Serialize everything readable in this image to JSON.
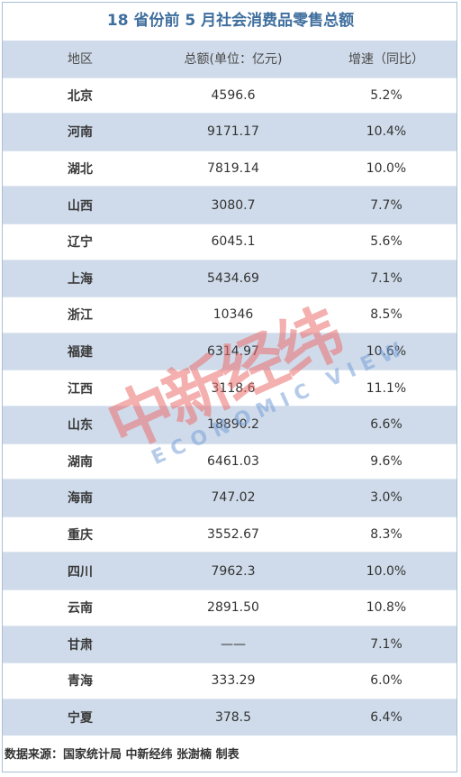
{
  "title": "18 省份前 5 月社会消费品零售总额",
  "headers": [
    "地区",
    "总额(单位：亿元)",
    "增速（同比）"
  ],
  "rows": [
    {
      "region": "北京",
      "total": "4596.6",
      "growth": "5.2%"
    },
    {
      "region": "河南",
      "total": "9171.17",
      "growth": "10.4%"
    },
    {
      "region": "湖北",
      "total": "7819.14",
      "growth": "10.0%"
    },
    {
      "region": "山西",
      "total": "3080.7",
      "growth": "7.7%"
    },
    {
      "region": "辽宁",
      "total": "6045.1",
      "growth": "5.6%"
    },
    {
      "region": "上海",
      "total": "5434.69",
      "growth": "7.1%"
    },
    {
      "region": "浙江",
      "total": "10346",
      "growth": "8.5%"
    },
    {
      "region": "福建",
      "total": "6314.97",
      "growth": "10.6%"
    },
    {
      "region": "江西",
      "total": "3118.6",
      "growth": "11.1%"
    },
    {
      "region": "山东",
      "total": "18890.2",
      "growth": "6.6%"
    },
    {
      "region": "湖南",
      "total": "6461.03",
      "growth": "9.6%"
    },
    {
      "region": "海南",
      "total": "747.02",
      "growth": "3.0%"
    },
    {
      "region": "重庆",
      "total": "3552.67",
      "growth": "8.3%"
    },
    {
      "region": "四川",
      "total": "7962.3",
      "growth": "10.0%"
    },
    {
      "region": "云南",
      "total": "2891.50",
      "growth": "10.8%"
    },
    {
      "region": "甘肃",
      "total": "——",
      "growth": "7.1%"
    },
    {
      "region": "青海",
      "total": "333.29",
      "growth": "6.0%"
    },
    {
      "region": "宁夏",
      "total": "378.5",
      "growth": "6.4%"
    }
  ],
  "footer": "数据来源：国家统计局 中新经纬 张澍楠 制表",
  "watermark": {
    "cn": "中新经纬",
    "en": "ECONOMIC VIEW"
  }
}
